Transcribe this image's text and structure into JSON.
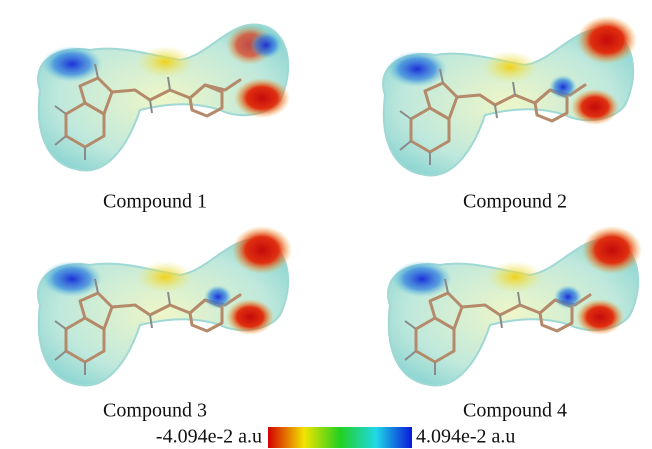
{
  "panels": [
    {
      "label": "Compound 1"
    },
    {
      "label": "Compound 2"
    },
    {
      "label": "Compound 3"
    },
    {
      "label": "Compound 4"
    }
  ],
  "colorbar": {
    "min_label": "-4.094e-2 a.u",
    "max_label": "4.094e-2 a.u"
  }
}
